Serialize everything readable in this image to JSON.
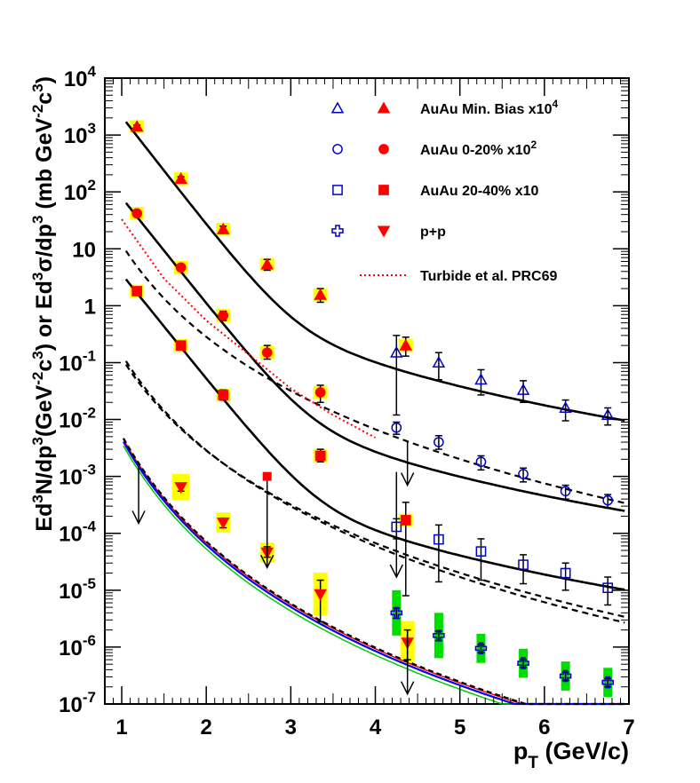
{
  "chart_data": {
    "type": "scatter",
    "xlim": [
      0.8,
      7
    ],
    "ylim": [
      1e-07,
      10000
    ],
    "y_scale": "log",
    "grid": false,
    "legend_position": "top-right",
    "xlabel": {
      "main": "p",
      "sub": "T",
      "rest": " (GeV/c)"
    },
    "ylabel": [
      {
        "t": "Ed"
      },
      {
        "t": "3",
        "sup": true
      },
      {
        "t": "N/dp"
      },
      {
        "t": "3",
        "sup": true
      },
      {
        "t": "(GeV"
      },
      {
        "t": "-2",
        "sup": true
      },
      {
        "t": "c"
      },
      {
        "t": "3",
        "sup": true
      },
      {
        "t": ") or Ed"
      },
      {
        "t": "3",
        "sup": true
      },
      {
        "t": "σ/dp"
      },
      {
        "t": "3",
        "sup": true
      },
      {
        "t": " (mb GeV"
      },
      {
        "t": "-2",
        "sup": true
      },
      {
        "t": "c"
      },
      {
        "t": "3",
        "sup": true
      },
      {
        "t": ")"
      }
    ],
    "x_ticks": [
      {
        "v": 1,
        "label": "1"
      },
      {
        "v": 2,
        "label": "2"
      },
      {
        "v": 3,
        "label": "3"
      },
      {
        "v": 4,
        "label": "4"
      },
      {
        "v": 5,
        "label": "5"
      },
      {
        "v": 6,
        "label": "6"
      },
      {
        "v": 7,
        "label": "7"
      }
    ],
    "y_ticks": [
      {
        "e": -7,
        "label": "10",
        "sup": "-7"
      },
      {
        "e": -6,
        "label": "10",
        "sup": "-6"
      },
      {
        "e": -5,
        "label": "10",
        "sup": "-5"
      },
      {
        "e": -4,
        "label": "10",
        "sup": "-4"
      },
      {
        "e": -3,
        "label": "10",
        "sup": "-3"
      },
      {
        "e": -2,
        "label": "10",
        "sup": "-2"
      },
      {
        "e": -1,
        "label": "10",
        "sup": "-1"
      },
      {
        "e": 0,
        "label": "1",
        "sup": ""
      },
      {
        "e": 1,
        "label": "10",
        "sup": ""
      },
      {
        "e": 2,
        "label": "10",
        "sup": "2"
      },
      {
        "e": 3,
        "label": "10",
        "sup": "3"
      },
      {
        "e": 4,
        "label": "10",
        "sup": "4"
      }
    ],
    "legend": [
      {
        "open": "triangle",
        "filled": "triangle",
        "text": "AuAu Min. Bias x10",
        "sup": "4"
      },
      {
        "open": "circle",
        "filled": "circle",
        "text": "AuAu 0-20% x10",
        "sup": "2"
      },
      {
        "open": "square",
        "filled": "square",
        "text": "AuAu 20-40% x10",
        "sup": ""
      },
      {
        "open": "cross",
        "filled": "invtriangle",
        "text": "p+p",
        "sup": ""
      },
      {
        "line": "dotted-red",
        "text": "Turbide et al. PRC69",
        "sup": ""
      }
    ],
    "series": [
      {
        "name": "AuAu Min. Bias x10^4",
        "color_filled": "#ff0000",
        "color_open": "#0000cc",
        "filled_marker": "triangle",
        "open_marker": "triangle",
        "filled": [
          {
            "x": 1.18,
            "y": 1400,
            "lo": 1300,
            "hi": 1500
          },
          {
            "x": 1.7,
            "y": 170,
            "lo": 155,
            "hi": 185
          },
          {
            "x": 2.2,
            "y": 22,
            "lo": 19,
            "hi": 25
          },
          {
            "x": 2.72,
            "y": 5.3,
            "lo": 4.2,
            "hi": 6.5
          },
          {
            "x": 3.35,
            "y": 1.55,
            "lo": 1.15,
            "hi": 2.0
          },
          {
            "x": 4.36,
            "y": 0.2,
            "lo": 0.13,
            "hi": 0.28
          }
        ],
        "open": [
          {
            "x": 4.25,
            "y": 0.15,
            "lo": 0.012,
            "hi": 0.3
          },
          {
            "x": 4.75,
            "y": 0.1,
            "lo": 0.05,
            "hi": 0.15
          },
          {
            "x": 5.25,
            "y": 0.05,
            "lo": 0.027,
            "hi": 0.075
          },
          {
            "x": 5.75,
            "y": 0.033,
            "lo": 0.02,
            "hi": 0.048
          },
          {
            "x": 6.25,
            "y": 0.016,
            "lo": 0.0095,
            "hi": 0.022
          },
          {
            "x": 6.75,
            "y": 0.012,
            "lo": 0.008,
            "hi": 0.016
          }
        ],
        "fit_a": 170000.0,
        "fit_b": 4.4,
        "fit_pw_a": 33,
        "fit_pw_n": 4.2,
        "dashed_c": 12,
        "dashed_n": 5.4
      },
      {
        "name": "AuAu 0-20% x10^2",
        "color_filled": "#ff0000",
        "color_open": "#0000cc",
        "filled_marker": "circle",
        "open_marker": "circle",
        "filled": [
          {
            "x": 1.18,
            "y": 42,
            "lo": 38,
            "hi": 46
          },
          {
            "x": 1.7,
            "y": 4.7,
            "lo": 4.2,
            "hi": 5.2
          },
          {
            "x": 2.2,
            "y": 0.67,
            "lo": 0.55,
            "hi": 0.8
          },
          {
            "x": 2.72,
            "y": 0.15,
            "lo": 0.115,
            "hi": 0.2
          },
          {
            "x": 3.35,
            "y": 0.03,
            "lo": 0.02,
            "hi": 0.04
          }
        ],
        "open": [
          {
            "x": 4.25,
            "y": 0.0072,
            "lo": 0.0055,
            "hi": 0.009
          },
          {
            "x": 4.75,
            "y": 0.004,
            "lo": 0.003,
            "hi": 0.0052
          },
          {
            "x": 5.25,
            "y": 0.0018,
            "lo": 0.0013,
            "hi": 0.0023
          },
          {
            "x": 5.75,
            "y": 0.0011,
            "lo": 0.0008,
            "hi": 0.0014
          },
          {
            "x": 6.25,
            "y": 0.00055,
            "lo": 0.0004,
            "hi": 0.0007
          },
          {
            "x": 6.75,
            "y": 0.00038,
            "lo": 0.00028,
            "hi": 0.00048
          }
        ],
        "fit_a": 5800,
        "fit_b": 4.3,
        "fit_pw_a": 0.85,
        "fit_pw_n": 4.2,
        "dashed_c": 0.12,
        "dashed_n": 5.4
      },
      {
        "name": "AuAu 20-40% x10",
        "color_filled": "#ff0000",
        "color_open": "#0000cc",
        "filled_marker": "square",
        "open_marker": "square",
        "filled": [
          {
            "x": 1.18,
            "y": 1.8,
            "lo": 1.6,
            "hi": 2.0
          },
          {
            "x": 1.7,
            "y": 0.2,
            "lo": 0.18,
            "hi": 0.22
          },
          {
            "x": 2.2,
            "y": 0.027,
            "lo": 0.022,
            "hi": 0.033
          },
          {
            "x": 3.35,
            "y": 0.0023,
            "lo": 0.0018,
            "hi": 0.003
          },
          {
            "x": 4.36,
            "y": 0.00017,
            "lo": 8e-06,
            "hi": 0.00035
          }
        ],
        "open": [
          {
            "x": 4.25,
            "y": 0.00013,
            "lo": 8e-05,
            "hi": 0.00018
          },
          {
            "x": 4.75,
            "y": 7.8e-05,
            "lo": 1.4e-05,
            "hi": 0.00014
          },
          {
            "x": 5.25,
            "y": 4.8e-05,
            "lo": 1.5e-05,
            "hi": 8e-05
          },
          {
            "x": 5.75,
            "y": 2.8e-05,
            "lo": 1.3e-05,
            "hi": 4.2e-05
          },
          {
            "x": 6.25,
            "y": 2e-05,
            "lo": 1e-05,
            "hi": 3e-05
          },
          {
            "x": 6.75,
            "y": 1.1e-05,
            "lo": 5.5e-06,
            "hi": 1.7e-05
          }
        ],
        "fit_a": 250,
        "fit_b": 4.25,
        "fit_pw_a": 0.035,
        "fit_pw_n": 4.2,
        "dashed_c": 0.14,
        "dashed_n": 5.6
      },
      {
        "name": "p+p",
        "color_filled": "#ff0000",
        "color_open": "#0000cc",
        "filled_marker": "invtriangle",
        "open_marker": "cross",
        "filled": [
          {
            "x": 1.7,
            "y": 0.00065,
            "lo": 0.00055,
            "hi": 0.00075
          },
          {
            "x": 2.2,
            "y": 0.000155,
            "lo": 0.000125,
            "hi": 0.000185
          },
          {
            "x": 2.72,
            "y": 4.6e-05,
            "lo": 3.8e-05,
            "hi": 5.8e-05
          },
          {
            "x": 3.35,
            "y": 8.5e-06,
            "lo": 2.8e-06,
            "hi": 1.5e-05
          },
          {
            "x": 4.38,
            "y": 1.2e-06,
            "lo": 6e-07,
            "hi": 2e-06
          }
        ],
        "open": [
          {
            "x": 4.25,
            "y": 4e-06,
            "lo": 3.2e-06,
            "hi": 4.8e-06
          },
          {
            "x": 4.75,
            "y": 1.6e-06,
            "lo": 1.3e-06,
            "hi": 1.9e-06
          },
          {
            "x": 5.25,
            "y": 9.5e-07,
            "lo": 8e-07,
            "hi": 1.1e-06
          },
          {
            "x": 5.75,
            "y": 5.2e-07,
            "lo": 4.4e-07,
            "hi": 6e-07
          },
          {
            "x": 6.25,
            "y": 3.1e-07,
            "lo": 2.6e-07,
            "hi": 3.6e-07
          },
          {
            "x": 6.75,
            "y": 2.4e-07,
            "lo": 2e-07,
            "hi": 2.8e-07
          }
        ],
        "upper_limits": [
          {
            "x": 1.2,
            "y": 0.0015
          },
          {
            "x": 2.72,
            "y": 0.001,
            "filled_square": true
          },
          {
            "x": 4.25,
            "y": 0.0012
          },
          {
            "x": 4.38,
            "y": 2e-06
          },
          {
            "x": 4.38,
            "y": 0.0042
          }
        ],
        "fit_a": 0.0046,
        "fit_n": 6.2,
        "fit_colors": [
          "#0000ff",
          "#00cc00",
          "#ff0000"
        ]
      }
    ],
    "turbide": {
      "color": "#ff0000",
      "x": [
        1.0,
        1.5,
        2.0,
        2.5,
        3.0,
        3.5,
        4.0
      ],
      "y": [
        33,
        3.0,
        0.55,
        0.14,
        0.035,
        0.012,
        0.0048
      ]
    }
  }
}
